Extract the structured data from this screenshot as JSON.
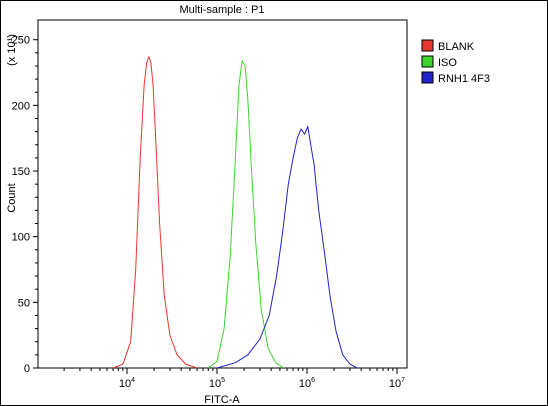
{
  "chart_data": {
    "type": "line",
    "title": "Multi-sample : P1",
    "xlabel": "FITC-A",
    "ylabel": "Count",
    "y_multiplier": "(x 10¹)",
    "x_scale": "log",
    "xlim": [
      10000,
      10000000
    ],
    "ylim": [
      0,
      265
    ],
    "x_ticks": [
      {
        "value": 10000,
        "base": "10",
        "exp": "4"
      },
      {
        "value": 100000,
        "base": "10",
        "exp": "5"
      },
      {
        "value": 1000000,
        "base": "10",
        "exp": "6"
      },
      {
        "value": 10000000,
        "base": "10",
        "exp": "7"
      }
    ],
    "y_ticks": [
      0,
      50,
      100,
      150,
      200,
      250
    ],
    "grid": false,
    "legend_position": "right",
    "series": [
      {
        "name": "BLANK",
        "color": "#e8372c",
        "x": [
          7000,
          9000,
          11000,
          12500,
          14000,
          15500,
          16500,
          17500,
          18500,
          19500,
          21000,
          23000,
          26000,
          30000,
          36000,
          45000,
          60000
        ],
        "y": [
          0,
          3,
          20,
          75,
          160,
          215,
          232,
          237,
          232,
          215,
          170,
          110,
          55,
          25,
          10,
          3,
          0
        ]
      },
      {
        "name": "ISO",
        "color": "#3ed42e",
        "x": [
          80000,
          100000,
          120000,
          140000,
          160000,
          175000,
          190000,
          205000,
          220000,
          240000,
          270000,
          310000,
          370000,
          450000,
          550000
        ],
        "y": [
          0,
          5,
          30,
          85,
          160,
          215,
          234,
          230,
          205,
          155,
          95,
          45,
          15,
          4,
          0
        ]
      },
      {
        "name": "RNH1 4F3",
        "color": "#2222cc",
        "x": [
          100000,
          160000,
          220000,
          300000,
          380000,
          460000,
          540000,
          620000,
          700000,
          780000,
          860000,
          940000,
          1020000,
          1100000,
          1200000,
          1350000,
          1550000,
          1800000,
          2100000,
          2500000,
          3000000,
          3600000
        ],
        "y": [
          0,
          4,
          10,
          22,
          40,
          70,
          105,
          140,
          160,
          175,
          182,
          178,
          184,
          170,
          155,
          120,
          90,
          55,
          28,
          10,
          3,
          0
        ]
      }
    ]
  }
}
